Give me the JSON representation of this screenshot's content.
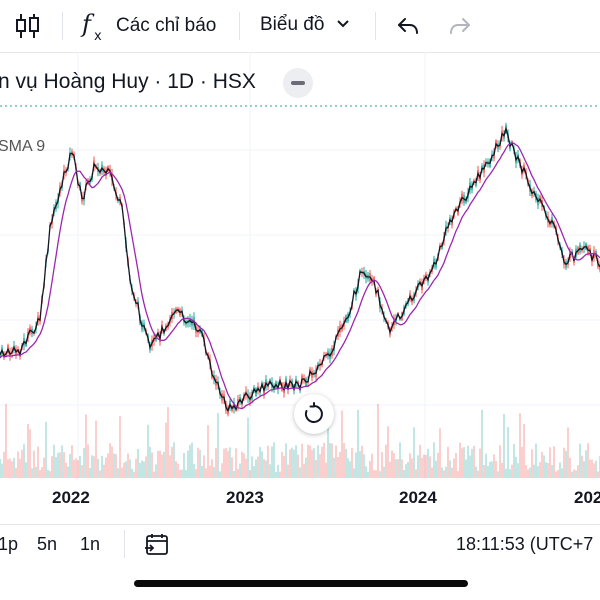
{
  "toolbar": {
    "indicators_label": "Các chỉ báo",
    "chart_label": "Biểu đồ"
  },
  "legend": {
    "symbol_title": "n vụ Hoàng Huy · 1D · HSX",
    "sma_label": "SMA 9"
  },
  "chart_data": {
    "type": "line",
    "x_labels": [
      "2022",
      "2023",
      "2024",
      "202"
    ],
    "series": [
      {
        "name": "SMA 9",
        "color": "#9c27b0"
      }
    ],
    "up_color": "#26a69a",
    "down_color": "#ef5350"
  },
  "bottom": {
    "ranges": [
      "1p",
      "5n",
      "1n"
    ],
    "clock": "18:11:53 (UTC+7"
  },
  "icons": {
    "candles": "candlestick-icon",
    "indicators": "fx-icon",
    "undo": "undo-icon",
    "redo": "redo-icon",
    "reset": "reset-icon",
    "goto": "go-to-date-icon"
  }
}
